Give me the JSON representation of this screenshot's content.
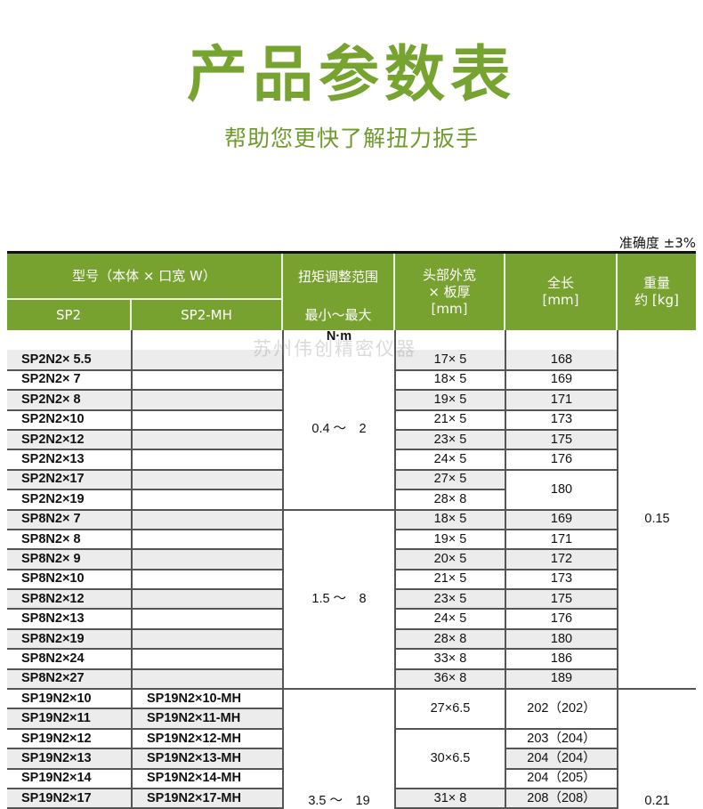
{
  "title": "产品参数表",
  "subtitle": "帮助您更快了解扭力扳手",
  "accuracy": "准确度 ±3%",
  "watermark": "苏州伟创精密仪器",
  "colors": {
    "header_green": "#78a22f",
    "title_green": "#77a431"
  },
  "header": {
    "model": "型号（本体 × 口宽 W）",
    "sp2": "SP2",
    "sp2mh": "SP2-MH",
    "torque": "扭矩调整范围",
    "torque_sub": "最小～最大",
    "head": "头部外宽\n× 板厚\n[mm]",
    "length": "全长\n[mm]",
    "weight": "重量\n约 [kg]"
  },
  "unit_row": "N·m",
  "rows": [
    {
      "sp2": "SP2N2× 5.5",
      "mh": "",
      "torque": "0.4 ～　2",
      "head": "17× 5",
      "len": "168",
      "weight": "0.15"
    },
    {
      "sp2": "SP2N2× 7",
      "mh": "",
      "head": "18× 5",
      "len": "169"
    },
    {
      "sp2": "SP2N2× 8",
      "mh": "",
      "head": "19× 5",
      "len": "171"
    },
    {
      "sp2": "SP2N2×10",
      "mh": "",
      "head": "21× 5",
      "len": "173"
    },
    {
      "sp2": "SP2N2×12",
      "mh": "",
      "head": "23× 5",
      "len": "175"
    },
    {
      "sp2": "SP2N2×13",
      "mh": "",
      "head": "24× 5",
      "len": "176"
    },
    {
      "sp2": "SP2N2×17",
      "mh": "",
      "head": "27× 5",
      "len": "180"
    },
    {
      "sp2": "SP2N2×19",
      "mh": "",
      "head": "28× 8"
    },
    {
      "sp2": "SP8N2× 7",
      "mh": "",
      "torque": "1.5 ～　8",
      "head": "18× 5",
      "len": "169"
    },
    {
      "sp2": "SP8N2× 8",
      "mh": "",
      "head": "19× 5",
      "len": "171"
    },
    {
      "sp2": "SP8N2× 9",
      "mh": "",
      "head": "20× 5",
      "len": "172"
    },
    {
      "sp2": "SP8N2×10",
      "mh": "",
      "head": "21× 5",
      "len": "173"
    },
    {
      "sp2": "SP8N2×12",
      "mh": "",
      "head": "23× 5",
      "len": "175"
    },
    {
      "sp2": "SP8N2×13",
      "mh": "",
      "head": "24× 5",
      "len": "176"
    },
    {
      "sp2": "SP8N2×19",
      "mh": "",
      "head": "28× 8",
      "len": "180"
    },
    {
      "sp2": "SP8N2×24",
      "mh": "",
      "head": "33× 8",
      "len": "186"
    },
    {
      "sp2": "SP8N2×27",
      "mh": "",
      "head": "36× 8",
      "len": "189"
    },
    {
      "sp2": "SP19N2×10",
      "mh": "SP19N2×10-MH",
      "torque": "3.5 ～　19",
      "head": "27×6.5",
      "len": "202（202）",
      "weight": "0.21"
    },
    {
      "sp2": "SP19N2×11",
      "mh": "SP19N2×11-MH"
    },
    {
      "sp2": "SP19N2×12",
      "mh": "SP19N2×12-MH",
      "head": "30×6.5",
      "len": "203（204）"
    },
    {
      "sp2": "SP19N2×13",
      "mh": "SP19N2×13-MH",
      "len": "204（204）"
    },
    {
      "sp2": "SP19N2×14",
      "mh": "SP19N2×14-MH",
      "len": "204（205）"
    },
    {
      "sp2": "SP19N2×17",
      "mh": "SP19N2×17-MH",
      "head": "31× 8",
      "len": "208（208）"
    }
  ]
}
